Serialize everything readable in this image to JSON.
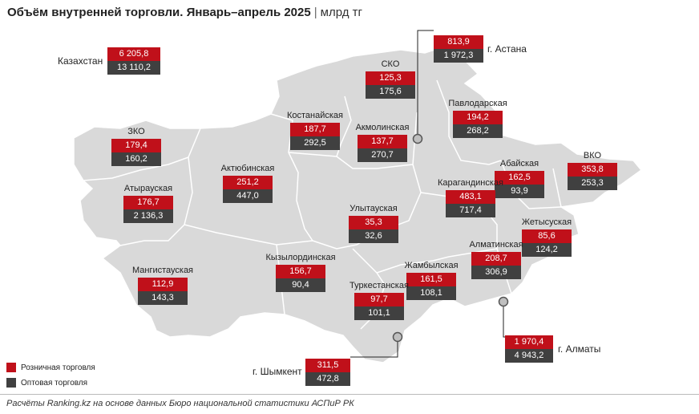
{
  "title": {
    "main": "Объём внутренней торговли. Январь–апрель 2025",
    "separator": "|",
    "unit": "млрд тг"
  },
  "colors": {
    "retail": "#c0101a",
    "wholesale": "#404040",
    "map_fill": "#d9d9d9",
    "border": "#ffffff"
  },
  "kazakhstan": {
    "label": "Казахстан",
    "retail": "6 205,8",
    "wholesale": "13 110,2"
  },
  "regions": [
    {
      "id": "sko",
      "label": "СКО",
      "retail": "125,3",
      "wholesale": "175,6"
    },
    {
      "id": "astana",
      "label": "г. Астана",
      "retail": "813,9",
      "wholesale": "1 972,3"
    },
    {
      "id": "kostanay",
      "label": "Костанайская",
      "retail": "187,7",
      "wholesale": "292,5"
    },
    {
      "id": "pavlodar",
      "label": "Павлодарская",
      "retail": "194,2",
      "wholesale": "268,2"
    },
    {
      "id": "akmola",
      "label": "Акмолинская",
      "retail": "137,7",
      "wholesale": "270,7"
    },
    {
      "id": "zko",
      "label": "ЗКО",
      "retail": "179,4",
      "wholesale": "160,2"
    },
    {
      "id": "aktobe",
      "label": "Актюбинская",
      "retail": "251,2",
      "wholesale": "447,0"
    },
    {
      "id": "abay",
      "label": "Абайская",
      "retail": "162,5",
      "wholesale": "93,9"
    },
    {
      "id": "vko",
      "label": "ВКО",
      "retail": "353,8",
      "wholesale": "253,3"
    },
    {
      "id": "atyrau",
      "label": "Атырауская",
      "retail": "176,7",
      "wholesale": "2 136,3"
    },
    {
      "id": "karaganda",
      "label": "Карагандинская",
      "retail": "483,1",
      "wholesale": "717,4"
    },
    {
      "id": "ulytau",
      "label": "Улытауская",
      "retail": "35,3",
      "wholesale": "32,6"
    },
    {
      "id": "zhetysu",
      "label": "Жетысуская",
      "retail": "85,6",
      "wholesale": "124,2"
    },
    {
      "id": "almaty_obl",
      "label": "Алматинская",
      "retail": "208,7",
      "wholesale": "306,9"
    },
    {
      "id": "kyzylorda",
      "label": "Кызылординская",
      "retail": "156,7",
      "wholesale": "90,4"
    },
    {
      "id": "mangistau",
      "label": "Мангистауская",
      "retail": "112,9",
      "wholesale": "143,3"
    },
    {
      "id": "zhambyl",
      "label": "Жамбылская",
      "retail": "161,5",
      "wholesale": "108,1"
    },
    {
      "id": "turkestan",
      "label": "Туркестанская",
      "retail": "97,7",
      "wholesale": "101,1"
    },
    {
      "id": "almaty_city",
      "label": "г. Алматы",
      "retail": "1 970,4",
      "wholesale": "4 943,2"
    },
    {
      "id": "shymkent",
      "label": "г. Шымкент",
      "retail": "311,5",
      "wholesale": "472,8"
    }
  ],
  "legend": {
    "retail": "Розничная торговля",
    "wholesale": "Оптовая торговля"
  },
  "footer": "Расчёты Ranking.kz на основе данных Бюро национальной статистики АСПиР РК"
}
